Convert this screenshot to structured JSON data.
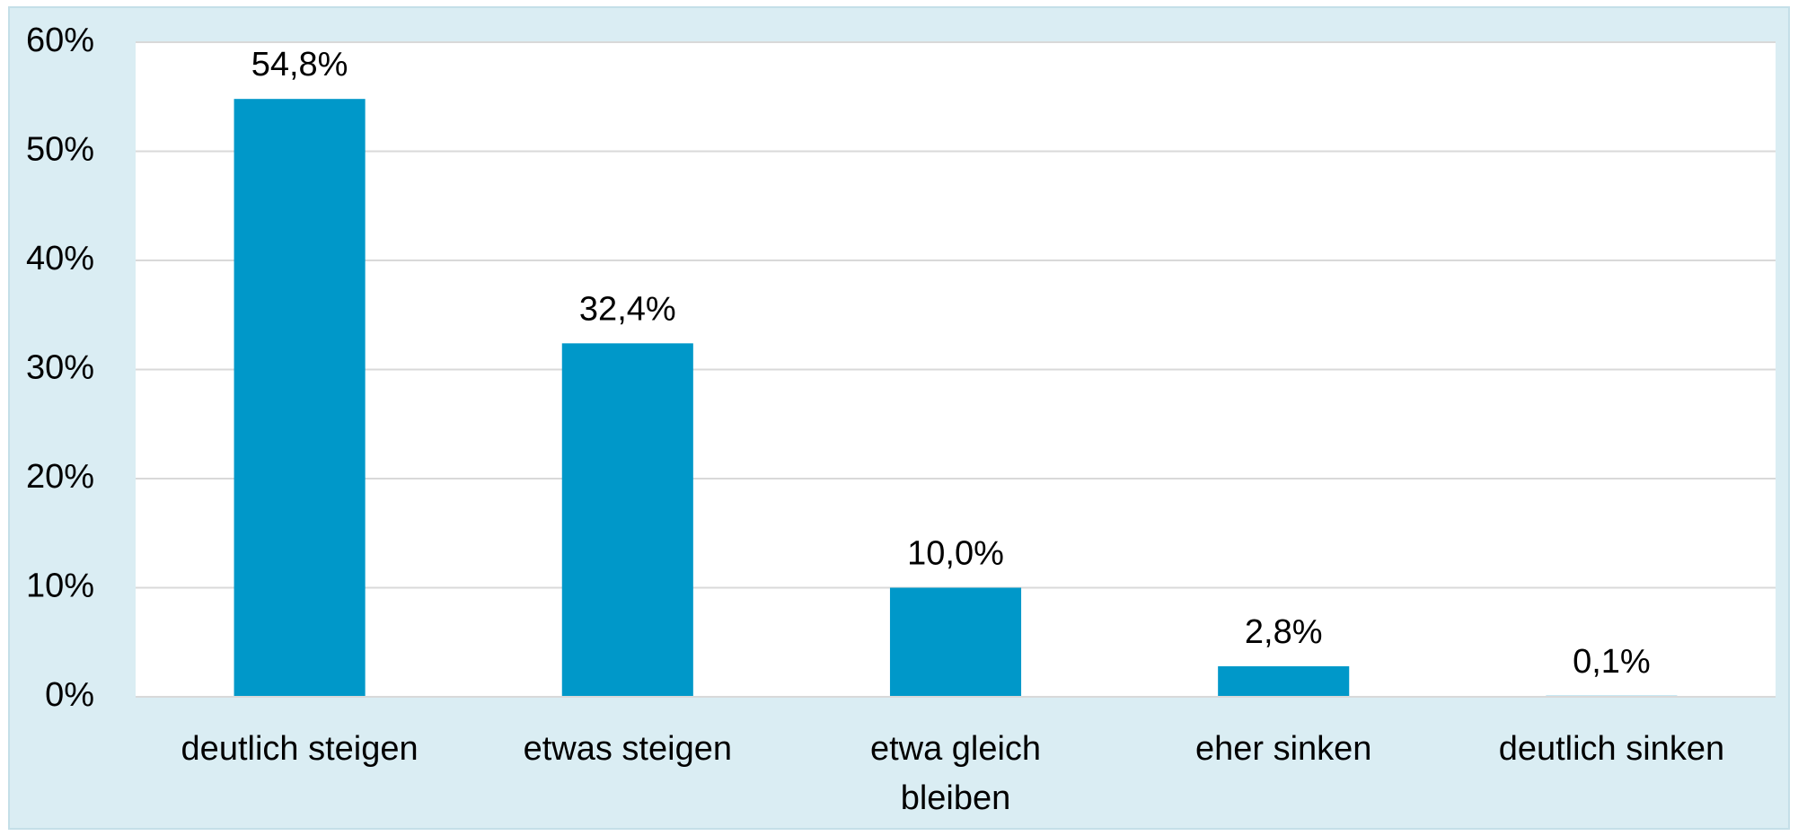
{
  "chart_data": {
    "type": "bar",
    "categories": [
      "deutlich steigen",
      "etwas steigen",
      "etwa gleich bleiben",
      "eher sinken",
      "deutlich sinken"
    ],
    "values": [
      54.8,
      32.4,
      10.0,
      2.8,
      0.1
    ],
    "value_labels": [
      "54,8%",
      "32,4%",
      "10,0%",
      "2,8%",
      "0,1%"
    ],
    "color": "#0098c9",
    "ylim": [
      0,
      60
    ],
    "yticks": [
      {
        "value": 0,
        "label": "0%"
      },
      {
        "value": 10,
        "label": "10%"
      },
      {
        "value": 20,
        "label": "20%"
      },
      {
        "value": 30,
        "label": "30%"
      },
      {
        "value": 40,
        "label": "40%"
      },
      {
        "value": 50,
        "label": "50%"
      },
      {
        "value": 60,
        "label": "60%"
      }
    ],
    "grid": true
  }
}
